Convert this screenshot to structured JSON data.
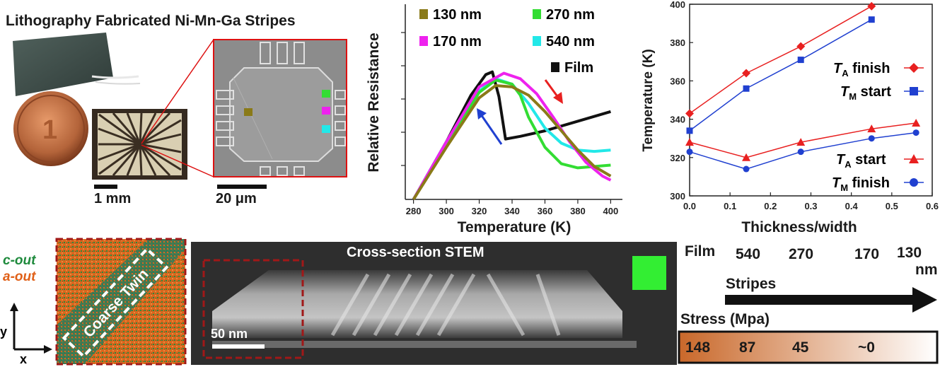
{
  "title": "Lithography Fabricated Ni-Mn-Ga Stripes",
  "scale_bars": {
    "chip": "1 mm",
    "sem": "20 μm",
    "stem": "50 nm"
  },
  "stem_label": "Cross-section STEM",
  "orientation_map": {
    "c_out": "c-out",
    "a_out": "a-out",
    "twin_label": "Coarse Twin",
    "axis_x": "x",
    "axis_y": "y",
    "colors": {
      "c_out": "#1e8a3c",
      "a_out": "#e06018"
    }
  },
  "stripes_panel": {
    "columns": [
      "Film",
      "540",
      "270",
      "170",
      "130"
    ],
    "unit": "nm",
    "arrow_label": "Stripes",
    "stress_label": "Stress (Mpa)",
    "stress_values": [
      "148",
      "87",
      "45",
      "~0"
    ],
    "stress_gradient": [
      "#c9682a",
      "#ffffff"
    ]
  },
  "chart_data": [
    {
      "type": "line",
      "title": "",
      "xlabel": "Temperature (K)",
      "ylabel": "Relative Resistance",
      "xlim": [
        275,
        405
      ],
      "xticks": [
        280,
        300,
        320,
        340,
        360,
        380,
        400
      ],
      "legend": [
        {
          "name": "130 nm",
          "color": "#8a7a18"
        },
        {
          "name": "270 nm",
          "color": "#33dd33"
        },
        {
          "name": "170 nm",
          "color": "#ee22ee"
        },
        {
          "name": "540 nm",
          "color": "#22e8e8"
        },
        {
          "name": "Film",
          "color": "#111111"
        }
      ],
      "series": [
        {
          "name": "Film",
          "color": "#111111",
          "x": [
            280,
            300,
            315,
            324,
            328,
            332,
            336,
            345,
            360,
            380,
            400
          ],
          "y": [
            0.0,
            0.42,
            0.76,
            0.91,
            0.93,
            0.75,
            0.44,
            0.46,
            0.5,
            0.57,
            0.64
          ]
        },
        {
          "name": "540 nm",
          "color": "#22e8e8",
          "x": [
            280,
            300,
            320,
            330,
            340,
            350,
            360,
            370,
            380,
            390,
            400
          ],
          "y": [
            0.0,
            0.42,
            0.79,
            0.88,
            0.84,
            0.7,
            0.52,
            0.41,
            0.36,
            0.35,
            0.36
          ]
        },
        {
          "name": "270 nm",
          "color": "#33dd33",
          "x": [
            280,
            300,
            320,
            330,
            340,
            345,
            350,
            360,
            370,
            380,
            400
          ],
          "y": [
            0.0,
            0.4,
            0.78,
            0.87,
            0.84,
            0.76,
            0.6,
            0.38,
            0.26,
            0.23,
            0.25
          ]
        },
        {
          "name": "170 nm",
          "color": "#ee22ee",
          "x": [
            280,
            300,
            320,
            335,
            345,
            355,
            365,
            375,
            385,
            395,
            400
          ],
          "y": [
            0.0,
            0.42,
            0.82,
            0.92,
            0.88,
            0.77,
            0.6,
            0.42,
            0.27,
            0.17,
            0.14
          ]
        },
        {
          "name": "130 nm",
          "color": "#8a7a18",
          "x": [
            280,
            300,
            320,
            330,
            340,
            350,
            360,
            370,
            380,
            390,
            400
          ],
          "y": [
            0.0,
            0.38,
            0.74,
            0.83,
            0.82,
            0.76,
            0.64,
            0.5,
            0.36,
            0.24,
            0.17
          ]
        }
      ]
    },
    {
      "type": "line",
      "title": "",
      "xlabel": "Thickness/width",
      "ylabel": "Temperature (K)",
      "xlim": [
        0.0,
        0.6
      ],
      "ylim": [
        300,
        400
      ],
      "xticks": [
        0.0,
        0.1,
        0.2,
        0.3,
        0.4,
        0.5,
        0.6
      ],
      "yticks": [
        300,
        320,
        340,
        360,
        380,
        400
      ],
      "series": [
        {
          "name": "T_A finish",
          "color": "#e82020",
          "marker": "diamond",
          "x": [
            0.0,
            0.14,
            0.275,
            0.45
          ],
          "y": [
            343,
            364,
            378,
            399
          ]
        },
        {
          "name": "T_M start",
          "color": "#2040d0",
          "marker": "square",
          "x": [
            0.0,
            0.14,
            0.275,
            0.45
          ],
          "y": [
            334,
            356,
            371,
            392
          ]
        },
        {
          "name": "T_A start",
          "color": "#e82020",
          "marker": "triangle",
          "x": [
            0.0,
            0.14,
            0.275,
            0.45,
            0.56
          ],
          "y": [
            328,
            320,
            328,
            335,
            338
          ]
        },
        {
          "name": "T_M finish",
          "color": "#2040d0",
          "marker": "circle",
          "x": [
            0.0,
            0.14,
            0.275,
            0.45,
            0.56
          ],
          "y": [
            323,
            314,
            323,
            330,
            333
          ]
        }
      ],
      "legend_labels": [
        {
          "main": "T",
          "sub": "A",
          "rest": " finish"
        },
        {
          "main": "T",
          "sub": "M",
          "rest": " start"
        },
        {
          "main": "T",
          "sub": "A",
          "rest": " start"
        },
        {
          "main": "T",
          "sub": "M",
          "rest": " finish"
        }
      ]
    }
  ]
}
